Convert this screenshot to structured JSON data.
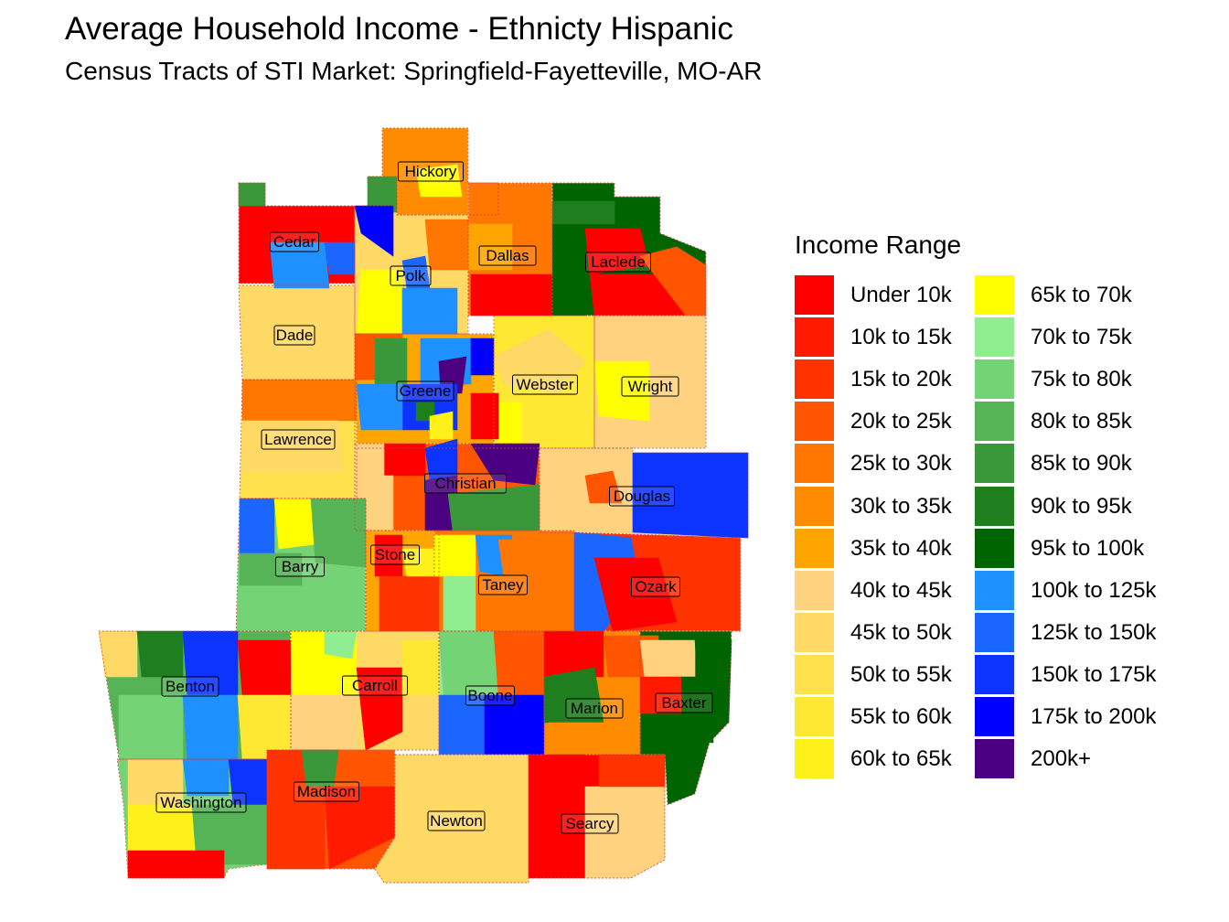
{
  "title": "Average Household Income - Ethnicty Hispanic",
  "subtitle": "Census Tracts of STI Market: Springfield-Fayetteville, MO-AR",
  "legend": {
    "title": "Income Range",
    "items": [
      {
        "label": "Under 10k",
        "color": "#FF0000"
      },
      {
        "label": "10k to 15k",
        "color": "#FF1A00"
      },
      {
        "label": "15k to 20k",
        "color": "#FF3300"
      },
      {
        "label": "20k to 25k",
        "color": "#FF5500"
      },
      {
        "label": "25k to 30k",
        "color": "#FF7700"
      },
      {
        "label": "30k to 35k",
        "color": "#FF8C00"
      },
      {
        "label": "35k to 40k",
        "color": "#FFA500"
      },
      {
        "label": "40k to 45k",
        "color": "#FFD27F"
      },
      {
        "label": "45k to 50k",
        "color": "#FFD966"
      },
      {
        "label": "50k to 55k",
        "color": "#FFE14D"
      },
      {
        "label": "55k to 60k",
        "color": "#FFE833"
      },
      {
        "label": "60k to 65k",
        "color": "#FFF01A"
      },
      {
        "label": "65k to 70k",
        "color": "#FFFF00"
      },
      {
        "label": "70k to 75k",
        "color": "#90EE90"
      },
      {
        "label": "75k to 80k",
        "color": "#74D374"
      },
      {
        "label": "80k to 85k",
        "color": "#56B356"
      },
      {
        "label": "85k to 90k",
        "color": "#3A983A"
      },
      {
        "label": "90k to 95k",
        "color": "#1F7F1F"
      },
      {
        "label": "95k to 100k",
        "color": "#006400"
      },
      {
        "label": "100k to 125k",
        "color": "#1E90FF"
      },
      {
        "label": "125k to 150k",
        "color": "#1A66FF"
      },
      {
        "label": "150k to 175k",
        "color": "#0D33FF"
      },
      {
        "label": "175k to 200k",
        "color": "#0000FF"
      },
      {
        "label": "200k+",
        "color": "#4B0082"
      }
    ]
  },
  "counties": [
    {
      "name": "Hickory"
    },
    {
      "name": "Cedar"
    },
    {
      "name": "Polk"
    },
    {
      "name": "Dallas"
    },
    {
      "name": "Laclede"
    },
    {
      "name": "Dade"
    },
    {
      "name": "Webster"
    },
    {
      "name": "Wright"
    },
    {
      "name": "Greene"
    },
    {
      "name": "Lawrence"
    },
    {
      "name": "Christian"
    },
    {
      "name": "Douglas"
    },
    {
      "name": "Barry"
    },
    {
      "name": "Stone"
    },
    {
      "name": "Taney"
    },
    {
      "name": "Ozark"
    },
    {
      "name": "Benton"
    },
    {
      "name": "Carroll"
    },
    {
      "name": "Boone"
    },
    {
      "name": "Marion"
    },
    {
      "name": "Baxter"
    },
    {
      "name": "Washington"
    },
    {
      "name": "Madison"
    },
    {
      "name": "Newton"
    },
    {
      "name": "Searcy"
    }
  ]
}
